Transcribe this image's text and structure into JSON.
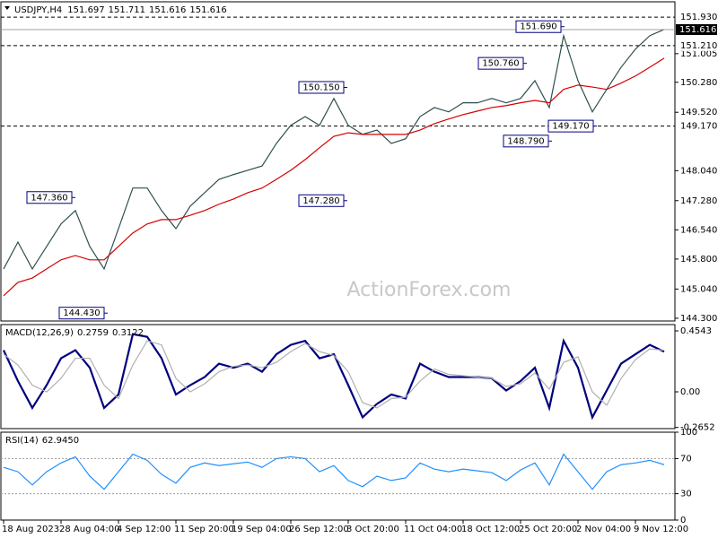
{
  "chart_data": [
    {
      "type": "line",
      "symbol": "USDJPY,H4",
      "ohlc": [
        151.697,
        151.711,
        151.616,
        151.616
      ],
      "categories": [
        "18 Aug 2023",
        null,
        null,
        null,
        "28 Aug 04:00",
        null,
        null,
        null,
        "4 Sep 12:00",
        null,
        null,
        null,
        "11 Sep 20:00",
        null,
        null,
        null,
        "19 Sep 04:00",
        null,
        null,
        null,
        "26 Sep 12:00",
        null,
        null,
        null,
        "3 Oct 20:00",
        null,
        null,
        null,
        "11 Oct 04:00",
        null,
        null,
        null,
        "18 Oct 12:00",
        null,
        null,
        null,
        "25 Oct 20:00",
        null,
        null,
        null,
        "2 Nov 04:00",
        null,
        null,
        null,
        "9 Nov 12:00",
        null,
        null
      ],
      "series": [
        {
          "color": "#2f4f4f",
          "values": [
            145.55,
            146.23,
            145.55,
            146.12,
            146.69,
            147.03,
            146.12,
            145.55,
            146.57,
            147.6,
            147.6,
            147.03,
            146.57,
            147.14,
            147.48,
            147.82,
            147.94,
            148.05,
            148.16,
            148.73,
            149.19,
            149.41,
            149.19,
            149.87,
            149.19,
            148.96,
            149.07,
            148.73,
            148.85,
            149.41,
            149.64,
            149.53,
            149.76,
            149.76,
            149.87,
            149.76,
            149.87,
            150.32,
            149.64,
            151.46,
            150.32,
            149.53,
            150.1,
            150.66,
            151.12,
            151.46,
            151.62
          ]
        },
        {
          "color": "#d40000",
          "values": [
            144.87,
            145.21,
            145.32,
            145.55,
            145.78,
            145.89,
            145.78,
            145.78,
            146.12,
            146.46,
            146.69,
            146.8,
            146.8,
            146.91,
            147.03,
            147.19,
            147.32,
            147.48,
            147.6,
            147.82,
            148.05,
            148.32,
            148.62,
            148.91,
            149.0,
            148.96,
            148.96,
            148.96,
            148.96,
            149.07,
            149.23,
            149.35,
            149.46,
            149.55,
            149.64,
            149.69,
            149.76,
            149.82,
            149.76,
            150.1,
            150.21,
            150.16,
            150.1,
            150.26,
            150.44,
            150.66,
            150.89
          ]
        }
      ],
      "ylim": [
        144.23,
        152.32
      ],
      "yticks": [
        {
          "value": 144.3,
          "label": "144.300"
        },
        {
          "value": 145.04,
          "label": "145.040"
        },
        {
          "value": 145.8,
          "label": "145.800"
        },
        {
          "value": 146.54,
          "label": "146.540"
        },
        {
          "value": 147.28,
          "label": "147.280"
        },
        {
          "value": 148.04,
          "label": "148.040"
        },
        {
          "value": 149.52,
          "label": "149.520"
        },
        {
          "value": 150.28,
          "label": "150.280"
        },
        151.005
      ],
      "levels": [
        {
          "value": 151.93,
          "label": "151.930"
        },
        {
          "value": 151.21,
          "label": "151.210"
        },
        {
          "value": 149.17,
          "label": "149.170"
        }
      ],
      "last_price": {
        "value": 151.616,
        "label": "151.616"
      },
      "annotations": [
        {
          "value": 147.36,
          "label": "147.360"
        },
        {
          "value": 144.43,
          "label": "144.430"
        },
        {
          "value": 150.15,
          "label": "150.150"
        },
        {
          "value": 147.28,
          "label": "147.280"
        },
        {
          "value": 150.76,
          "label": "150.760"
        },
        {
          "value": 151.69,
          "label": "151.690"
        },
        {
          "value": 148.79,
          "label": "148.790"
        },
        {
          "value": 149.17,
          "label": "149.170"
        }
      ],
      "watermark": "ActionForex.com"
    },
    {
      "type": "line",
      "title": "MACD(12,26,9)",
      "indicator_values": [
        0.2759,
        0.3122
      ],
      "series": [
        {
          "color": "#000080",
          "values": [
            0.31,
            0.08,
            -0.12,
            0.05,
            0.25,
            0.31,
            0.18,
            -0.12,
            -0.02,
            0.43,
            0.41,
            0.25,
            -0.02,
            0.05,
            0.11,
            0.21,
            0.18,
            0.21,
            0.15,
            0.28,
            0.35,
            0.38,
            0.25,
            0.28,
            0.05,
            -0.19,
            -0.09,
            -0.02,
            -0.05,
            0.21,
            0.15,
            0.11,
            0.11,
            0.11,
            0.1,
            0.01,
            0.08,
            0.18,
            -0.12,
            0.38,
            0.18,
            -0.19,
            0.01,
            0.21,
            0.28,
            0.35,
            0.3
          ]
        },
        {
          "color": "#b0b0b0",
          "values": [
            0.28,
            0.2,
            0.05,
            0.0,
            0.1,
            0.25,
            0.25,
            0.05,
            -0.05,
            0.2,
            0.38,
            0.35,
            0.1,
            0.0,
            0.06,
            0.15,
            0.19,
            0.2,
            0.18,
            0.22,
            0.3,
            0.36,
            0.3,
            0.27,
            0.15,
            -0.08,
            -0.12,
            -0.05,
            -0.04,
            0.08,
            0.17,
            0.13,
            0.12,
            0.11,
            0.1,
            0.04,
            0.06,
            0.14,
            0.02,
            0.22,
            0.26,
            0.0,
            -0.1,
            0.1,
            0.24,
            0.32,
            0.31
          ]
        }
      ],
      "ylim": [
        -0.274,
        0.501
      ],
      "yticks": [
        -0.2652,
        {
          "value": 0,
          "label": "0.00"
        },
        0.4543
      ]
    },
    {
      "type": "line",
      "title": "RSI(14)",
      "indicator_values": [
        {
          "value": 62.945,
          "label": "62.9450"
        }
      ],
      "series": [
        {
          "color": "#1e90ff",
          "values": [
            60,
            55,
            40,
            55,
            65,
            72,
            50,
            35,
            55,
            75,
            68,
            52,
            42,
            60,
            65,
            62,
            64,
            66,
            60,
            70,
            72,
            70,
            55,
            62,
            45,
            38,
            50,
            45,
            48,
            65,
            58,
            55,
            58,
            56,
            54,
            45,
            57,
            65,
            40,
            75,
            55,
            35,
            55,
            63,
            65,
            68,
            63
          ]
        }
      ],
      "ylim": [
        0,
        100
      ],
      "yticks": [
        0,
        30,
        70,
        100
      ],
      "levels": [
        30,
        70
      ]
    }
  ]
}
